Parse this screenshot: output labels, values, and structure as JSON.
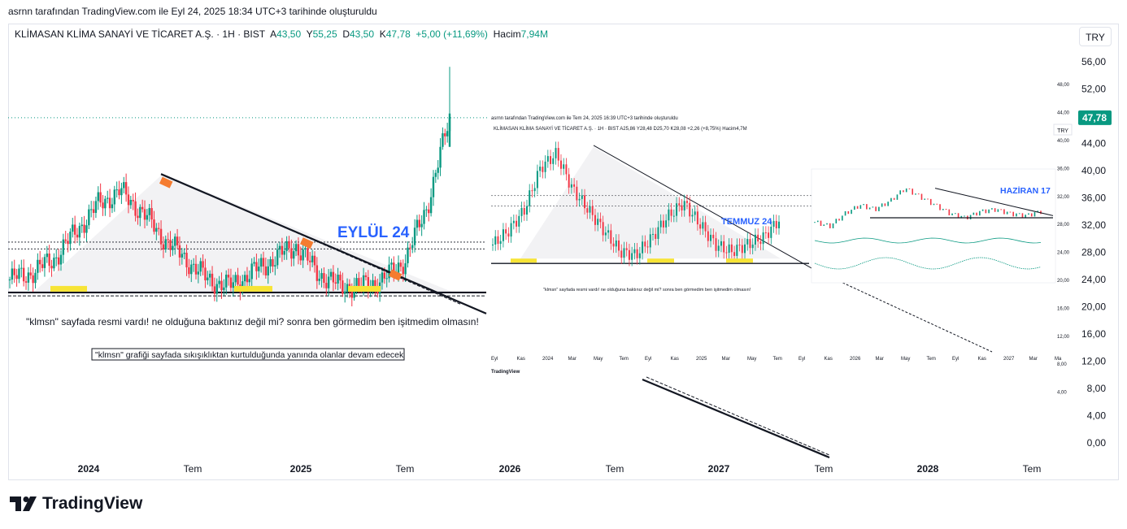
{
  "caption": "asrnn tarafından TradingView.com ile Eyl 24, 2025 18:34 UTC+3 tarihinde oluşturuldu",
  "header": {
    "symbol": "KLİMASAN KLİMA SANAYİ VE TİCARET A.Ş. · 1H · BIST",
    "open_label": "A",
    "open": "43,50",
    "high_label": "Y",
    "high": "55,25",
    "low_label": "D",
    "low": "43,50",
    "close_label": "K",
    "close": "47,78",
    "change": "+5,00 (+11,69%)",
    "volume_label": "Hacim",
    "volume": "7,94M"
  },
  "currency_button": "TRY",
  "logo_text": "TradingView",
  "colors": {
    "up": "#089981",
    "down": "#f23645",
    "accent": "#2962ff",
    "highlight": "#f7e436"
  },
  "chart_data": {
    "type": "candlestick",
    "x_ticks": [
      "2024",
      "Tem",
      "2025",
      "Tem",
      "2026",
      "Tem",
      "2027",
      "Tem",
      "2028",
      "Tem"
    ],
    "y_ticks": [
      "56,00",
      "52,00",
      "48,00",
      "44,00",
      "40,00",
      "36,00",
      "32,00",
      "28,00",
      "24,00",
      "20,00",
      "16,00",
      "12,00",
      "8,00",
      "4,00",
      "0,00"
    ],
    "ylim": [
      0,
      56
    ],
    "last_price": 47.78,
    "last_price_label": "47,78",
    "series": [
      {
        "date": "2024-01",
        "close": 24
      },
      {
        "date": "2024-02",
        "close": 25
      },
      {
        "date": "2024-03",
        "close": 27
      },
      {
        "date": "2024-04",
        "close": 31
      },
      {
        "date": "2024-05",
        "close": 35
      },
      {
        "date": "2024-06",
        "close": 37
      },
      {
        "date": "2024-07",
        "close": 34
      },
      {
        "date": "2024-08",
        "close": 30
      },
      {
        "date": "2024-09",
        "close": 27
      },
      {
        "date": "2024-10",
        "close": 24
      },
      {
        "date": "2024-11",
        "close": 23
      },
      {
        "date": "2024-12",
        "close": 25
      },
      {
        "date": "2025-01",
        "close": 27
      },
      {
        "date": "2025-02",
        "close": 29
      },
      {
        "date": "2025-03",
        "close": 25
      },
      {
        "date": "2025-04",
        "close": 23
      },
      {
        "date": "2025-05",
        "close": 23
      },
      {
        "date": "2025-06",
        "close": 24
      },
      {
        "date": "2025-07",
        "close": 27
      },
      {
        "date": "2025-08",
        "close": 35
      },
      {
        "date": "2025-09",
        "close": 47.78
      }
    ],
    "horizontal_levels": [
      22.1,
      21.6,
      28.5,
      29.5
    ],
    "annotations": {
      "label_main": "EYLÜL 24",
      "note_1": "\"klmsn\" sayfada resmi vardı! ne olduğuna baktınız değil mi? sonra ben görmedim ben işitmedim olmasın!",
      "note_2": "\"klmsn\" grafiği sayfada sıkışıklıktan kurtulduğunda yanında olanlar devam edecek"
    },
    "inset_1": {
      "caption": "asrnn tarafından TradingView.com ile Tem 24, 2025 16:39 UTC+3 tarihinde oluşturuldu",
      "header": "KLİMASAN KLİMA SANAYİ VE TİCARET A.Ş. · 1H · BIST  A25,86  Y28,48  D25,70  K28,08  +2,26 (+8,75%)  Hacim4,7M",
      "currency": "TRY",
      "label": "TEMMUZ 24",
      "note": "\"klmsn\" sayfada resmi vardı! ne olduğuna baktınız değil mi? sonra ben görmedim ben işitmedim olmasın!",
      "y_ticks": [
        "48,00",
        "44,00",
        "40,00",
        "36,00",
        "32,00",
        "28,00",
        "24,00",
        "20,00",
        "16,00",
        "12,00",
        "8,00",
        "4,00"
      ],
      "x_ticks": [
        "Eyl",
        "Kas",
        "2024",
        "Mar",
        "May",
        "Tem",
        "Eyl",
        "Kas",
        "2025",
        "Mar",
        "May",
        "Tem",
        "Eyl",
        "Kas",
        "2026",
        "Mar",
        "May",
        "Tem",
        "Eyl",
        "Kas",
        "2027",
        "Mar",
        "Ma"
      ],
      "logo": "TradingView"
    },
    "inset_2": {
      "label": "HAZİRAN 17"
    }
  }
}
